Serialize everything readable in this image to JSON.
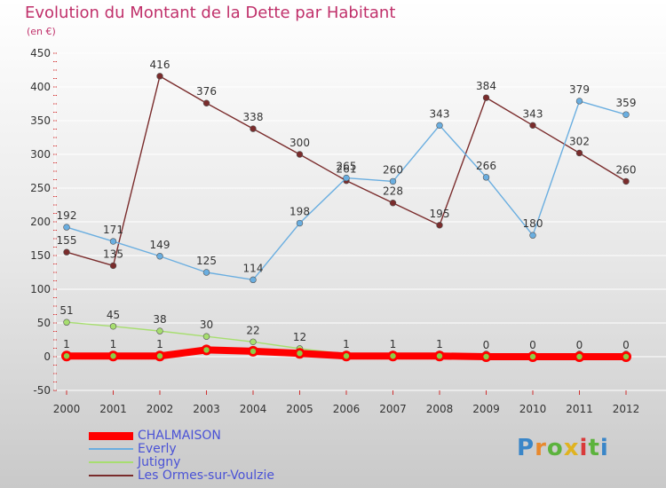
{
  "chart_data": {
    "type": "line",
    "title": "Evolution du Montant de la Dette par Habitant",
    "ylabel": "(en €)",
    "x": [
      "2000",
      "2001",
      "2002",
      "2003",
      "2004",
      "2005",
      "2006",
      "2007",
      "2008",
      "2009",
      "2010",
      "2011",
      "2012"
    ],
    "ylim": [
      -50,
      450
    ],
    "yticks": [
      -50,
      0,
      50,
      100,
      150,
      200,
      250,
      300,
      350,
      400,
      450
    ],
    "grid": true,
    "series": [
      {
        "name": "CHALMAISON",
        "color": "#ff0000",
        "values": [
          1,
          1,
          1,
          10,
          8,
          5,
          1,
          1,
          1,
          0,
          0,
          0,
          0
        ],
        "labels": [
          "1",
          "1",
          "1",
          "",
          "",
          "",
          "1",
          "1",
          "1",
          "0",
          "0",
          "0",
          "0"
        ]
      },
      {
        "name": "Everly",
        "color": "#6aaee0",
        "values": [
          192,
          171,
          149,
          125,
          114,
          198,
          265,
          260,
          343,
          266,
          180,
          379,
          359
        ],
        "labels": [
          "192",
          "171",
          "149",
          "125",
          "114",
          "198",
          "265",
          "260",
          "343",
          "266",
          "180",
          "379",
          "359"
        ]
      },
      {
        "name": "Jutigny",
        "color": "#a7de6f",
        "values": [
          51,
          45,
          38,
          30,
          22,
          12,
          4,
          4,
          4,
          4,
          4,
          4,
          4
        ],
        "labels": [
          "51",
          "45",
          "38",
          "30",
          "22",
          "12",
          "",
          "",
          "",
          "",
          "",
          "",
          ""
        ]
      },
      {
        "name": "Les Ormes-sur-Voulzie",
        "color": "#7a2c2c",
        "values": [
          155,
          135,
          416,
          376,
          338,
          300,
          261,
          228,
          195,
          384,
          343,
          302,
          260
        ],
        "labels": [
          "155",
          "135",
          "416",
          "376",
          "338",
          "300",
          "261",
          "228",
          "195",
          "384",
          "343",
          "302",
          "260"
        ]
      }
    ]
  },
  "logo": {
    "p1": "P",
    "p2": "r",
    "p3": "o",
    "p4": "x",
    "p5": "i",
    "p6": "t",
    "p7": "i"
  }
}
